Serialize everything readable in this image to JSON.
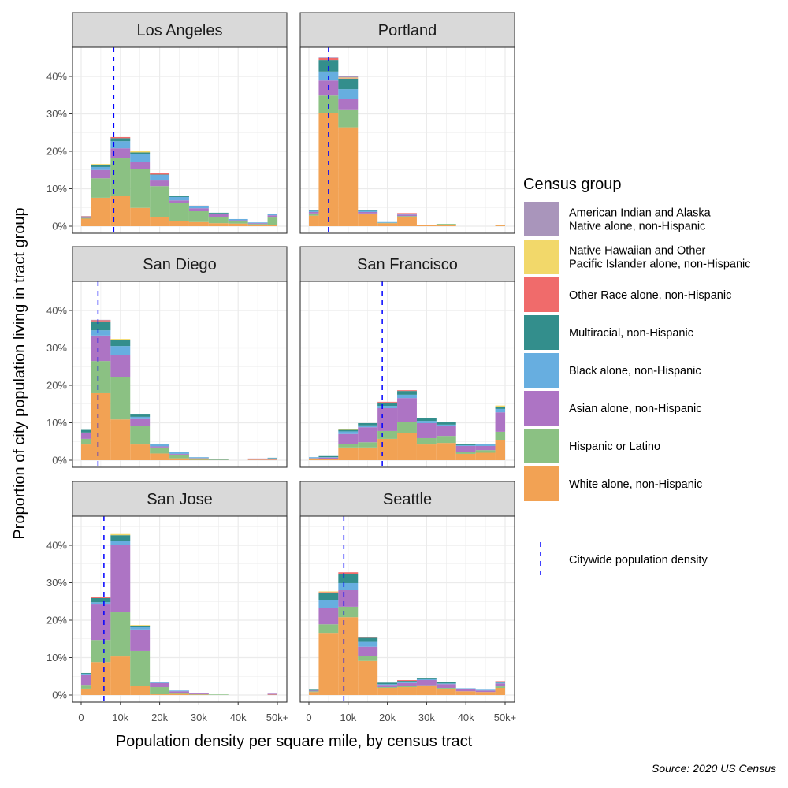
{
  "chart_data": {
    "type": "bar",
    "stacked": true,
    "faceted": true,
    "xlabel": "Population density per square mile, by census tract",
    "ylabel": "Proportion of city population living in tract group",
    "x_ticks": [
      "0",
      "10k",
      "20k",
      "30k",
      "40k",
      "50k+"
    ],
    "x_tick_values": [
      0,
      10000,
      20000,
      30000,
      40000,
      50000
    ],
    "y_ticks": [
      "0%",
      "10%",
      "20%",
      "30%",
      "40%"
    ],
    "y_tick_values": [
      0,
      10,
      20,
      30,
      40
    ],
    "ylim": [
      0,
      47
    ],
    "xlim": [
      0,
      50000
    ],
    "grid": true,
    "bin_centers": [
      0,
      5000,
      10000,
      15000,
      20000,
      25000,
      30000,
      35000,
      40000,
      45000,
      50000
    ],
    "legend": {
      "title": "Census group",
      "placement": "right",
      "density_label": "Citywide population density",
      "density_color": "#0000ff"
    },
    "groups": [
      {
        "name": "White alone, non-Hispanic",
        "label_lines": [
          "White alone, non-Hispanic"
        ],
        "color": "#f2a254"
      },
      {
        "name": "Hispanic or Latino",
        "label_lines": [
          "Hispanic or Latino"
        ],
        "color": "#8bc183"
      },
      {
        "name": "Asian alone, non-Hispanic",
        "label_lines": [
          "Asian alone, non-Hispanic"
        ],
        "color": "#ad74c4"
      },
      {
        "name": "Black alone, non-Hispanic",
        "label_lines": [
          "Black alone, non-Hispanic"
        ],
        "color": "#67aee0"
      },
      {
        "name": "Multiracial, non-Hispanic",
        "label_lines": [
          "Multiracial, non-Hispanic"
        ],
        "color": "#338e8c"
      },
      {
        "name": "Other Race alone, non-Hispanic",
        "label_lines": [
          "Other Race alone, non-Hispanic"
        ],
        "color": "#f06b6b"
      },
      {
        "name": "Native Hawaiian and Other Pacific Islander alone, non-Hispanic",
        "label_lines": [
          "Native Hawaiian and Other",
          "Pacific Islander alone, non-Hispanic"
        ],
        "color": "#f2d86a"
      },
      {
        "name": "American Indian and Alaska Native alone, non-Hispanic",
        "label_lines": [
          "American Indian and Alaska",
          "Native alone, non-Hispanic"
        ],
        "color": "#a995bb"
      }
    ],
    "facets": [
      {
        "title": "Los Angeles",
        "citywide_density": 8300,
        "values": [
          [
            2.0,
            7.6,
            8.0,
            4.9,
            2.5,
            1.3,
            1.1,
            0.8,
            0.7,
            0.4,
            0.4
          ],
          [
            0.2,
            5.2,
            10.1,
            10.3,
            8.2,
            5.0,
            2.9,
            1.7,
            0.6,
            0.2,
            1.9
          ],
          [
            0.2,
            2.2,
            2.7,
            1.9,
            1.5,
            0.6,
            0.8,
            0.7,
            0.3,
            0.2,
            0.6
          ],
          [
            0.2,
            0.8,
            1.9,
            2.1,
            1.5,
            0.9,
            0.5,
            0.2,
            0.3,
            0.2,
            0.3
          ],
          [
            0,
            0.6,
            0.8,
            0.5,
            0.1,
            0.2,
            0,
            0.2,
            0,
            0,
            0
          ],
          [
            0.1,
            0,
            0.3,
            0,
            0.3,
            0,
            0.2,
            0,
            0,
            0,
            0.1
          ],
          [
            0,
            0.2,
            0,
            0.3,
            0,
            0,
            0,
            0,
            0,
            0,
            0
          ],
          [
            0,
            0,
            0,
            0,
            0,
            0,
            0,
            0,
            0,
            0,
            0
          ]
        ]
      },
      {
        "title": "Portland",
        "citywide_density": 5000,
        "values": [
          [
            2.8,
            30.2,
            26.4,
            3.3,
            0.8,
            2.5,
            0.35,
            0.4,
            0,
            0,
            0.2
          ],
          [
            0.6,
            4.7,
            4.8,
            0.1,
            0.1,
            0.2,
            0,
            0.2,
            0,
            0,
            0.1
          ],
          [
            0.4,
            4.0,
            2.9,
            0.4,
            0,
            0.4,
            0,
            0,
            0,
            0,
            0
          ],
          [
            0.3,
            2.4,
            2.5,
            0.3,
            0.2,
            0.2,
            0,
            0,
            0,
            0,
            0
          ],
          [
            0.1,
            3.1,
            2.8,
            0.1,
            0,
            0,
            0,
            0,
            0,
            0,
            0
          ],
          [
            0,
            0.5,
            0.1,
            0,
            0,
            0.2,
            0,
            0,
            0,
            0,
            0
          ],
          [
            0,
            0.1,
            0.2,
            0,
            0,
            0,
            0,
            0,
            0,
            0,
            0
          ],
          [
            0,
            0.2,
            0.4,
            0,
            0,
            0,
            0,
            0,
            0,
            0,
            0
          ]
        ]
      },
      {
        "title": "San Diego",
        "citywide_density": 4300,
        "values": [
          [
            4.2,
            17.9,
            10.9,
            4.2,
            1.8,
            0.5,
            0.1,
            0.05,
            0,
            0.15,
            0.15
          ],
          [
            1.5,
            8.6,
            11.4,
            4.9,
            1.6,
            1.0,
            0.4,
            0.1,
            0,
            0,
            0
          ],
          [
            1.7,
            6.8,
            5.9,
            1.9,
            0.3,
            0.2,
            0.1,
            0,
            0,
            0.3,
            0.3
          ],
          [
            0,
            1.4,
            2.3,
            0.6,
            0.5,
            0.4,
            0.2,
            0,
            0,
            0,
            0.1
          ],
          [
            0.7,
            2.4,
            1.5,
            0.6,
            0.2,
            0,
            0,
            0.15,
            0,
            0,
            0.1
          ],
          [
            0,
            0.3,
            0.2,
            0,
            0,
            0,
            0,
            0,
            0,
            0,
            0
          ],
          [
            0,
            0,
            0.2,
            0,
            0,
            0,
            0,
            0,
            0,
            0,
            0
          ],
          [
            0,
            0.1,
            0,
            0,
            0,
            0,
            0,
            0,
            0,
            0,
            0
          ]
        ]
      },
      {
        "title": "San Francisco",
        "citywide_density": 18700,
        "values": [
          [
            0.4,
            0.3,
            3.4,
            3.4,
            5.7,
            7.2,
            4.2,
            4.6,
            1.7,
            2.0,
            5.3
          ],
          [
            0.1,
            0.1,
            1.0,
            1.4,
            2.1,
            3.1,
            1.7,
            1.9,
            0.6,
            0.7,
            2.3
          ],
          [
            0.1,
            0.3,
            2.6,
            4.0,
            6.1,
            6.3,
            4.0,
            2.6,
            1.5,
            1.1,
            5.2
          ],
          [
            0.2,
            0.1,
            0.7,
            0.5,
            0.6,
            0.9,
            0.6,
            0.4,
            0.2,
            0.4,
            0.9
          ],
          [
            0,
            0.3,
            0.4,
            0.6,
            0.9,
            1.0,
            0.7,
            0.6,
            0.2,
            0.2,
            0.6
          ],
          [
            0,
            0,
            0,
            0,
            0.2,
            0.2,
            0,
            0,
            0,
            0,
            0
          ],
          [
            0,
            0,
            0.2,
            0,
            0,
            0,
            0,
            0,
            0,
            0,
            0.3
          ],
          [
            0,
            0,
            0,
            0,
            0,
            0,
            0,
            0,
            0,
            0,
            0
          ]
        ]
      },
      {
        "title": "San Jose",
        "citywide_density": 5800,
        "values": [
          [
            1.7,
            8.8,
            10.3,
            2.5,
            0.2,
            0.3,
            0.1,
            0,
            0,
            0,
            0.1
          ],
          [
            1.0,
            5.9,
            11.8,
            9.3,
            1.9,
            0.3,
            0.1,
            0.15,
            0,
            0,
            0
          ],
          [
            2.8,
            9.5,
            17.9,
            5.7,
            1.1,
            0.4,
            0.2,
            0,
            0,
            0,
            0.25
          ],
          [
            0.2,
            0.6,
            1.1,
            0.6,
            0.2,
            0.2,
            0,
            0,
            0,
            0,
            0
          ],
          [
            0.2,
            1.1,
            1.6,
            0.4,
            0.1,
            0,
            0,
            0,
            0,
            0,
            0
          ],
          [
            0,
            0.2,
            0,
            0,
            0,
            0,
            0,
            0,
            0,
            0,
            0
          ],
          [
            0,
            0,
            0.3,
            0.2,
            0,
            0,
            0,
            0,
            0,
            0,
            0
          ],
          [
            0,
            0,
            0,
            0,
            0,
            0,
            0,
            0,
            0,
            0,
            0
          ]
        ]
      },
      {
        "title": "Seattle",
        "citywide_density": 8900,
        "values": [
          [
            0.8,
            16.6,
            20.8,
            9.1,
            1.9,
            2.1,
            2.5,
            1.7,
            1.0,
            0.8,
            1.9
          ],
          [
            0.2,
            2.3,
            2.8,
            1.3,
            0.2,
            0.4,
            0.1,
            0.2,
            0,
            0,
            0.4
          ],
          [
            0.2,
            4.4,
            4.4,
            2.5,
            0.6,
            0.7,
            1.4,
            1.0,
            0.6,
            0.4,
            0.8
          ],
          [
            0,
            2.1,
            1.9,
            1.3,
            0.2,
            0.4,
            0.2,
            0.2,
            0.2,
            0.2,
            0.2
          ],
          [
            0.2,
            1.9,
            2.5,
            1.1,
            0.4,
            0.2,
            0.2,
            0.3,
            0,
            0,
            0.2
          ],
          [
            0,
            0.2,
            0.4,
            0.2,
            0,
            0.2,
            0,
            0,
            0,
            0,
            0.2
          ],
          [
            0,
            0.2,
            0,
            0,
            0,
            0,
            0,
            0,
            0,
            0,
            0
          ],
          [
            0,
            0,
            0,
            0,
            0,
            0,
            0,
            0,
            0,
            0,
            0
          ]
        ]
      }
    ]
  },
  "source": "Source: 2020 US Census"
}
